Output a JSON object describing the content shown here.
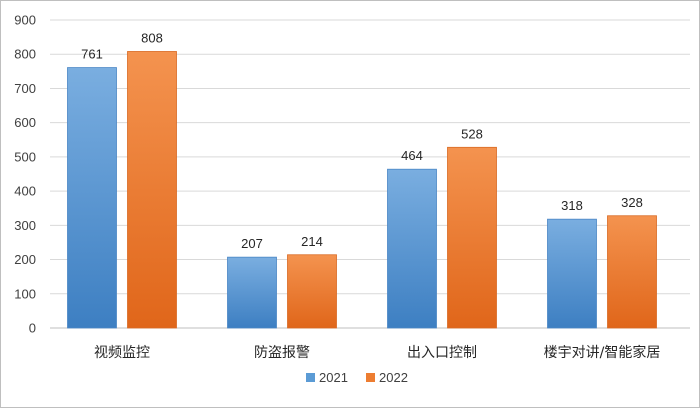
{
  "chart_data": {
    "type": "bar",
    "categories": [
      "视频监控",
      "防盗报警",
      "出入口控制",
      "楼宇对讲/智能家居"
    ],
    "series": [
      {
        "name": "2021",
        "values": [
          761,
          207,
          464,
          318
        ],
        "color": "#5b9bd5"
      },
      {
        "name": "2022",
        "values": [
          808,
          214,
          528,
          328
        ],
        "color": "#ed7d31"
      }
    ],
    "ylim": [
      0,
      900
    ],
    "yticks": [
      0,
      100,
      200,
      300,
      400,
      500,
      600,
      700,
      800,
      900
    ],
    "grid": true,
    "legend_position": "bottom",
    "data_labels": true
  }
}
